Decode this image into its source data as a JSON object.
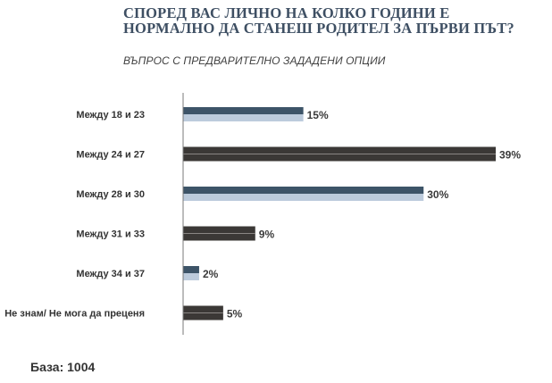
{
  "title": "СПОРЕД ВАС ЛИЧНО НА КОЛКО ГОДИНИ Е НОРМАЛНО ДА СТАНЕШ РОДИТЕЛ ЗА ПЪРВИ ПЪТ?",
  "subtitle": "ВЪПРОС С ПРЕДВАРИТЕЛНО ЗАДАДЕНИ ОПЦИИ",
  "footer": {
    "base": "База: 1004"
  },
  "colors": {
    "highlight_top": "#3d5468",
    "highlight_bottom": "#bccbdc",
    "dark": "#3b3836",
    "axis": "#7a7a7a"
  },
  "chart_data": {
    "type": "bar",
    "orientation": "horizontal",
    "categories": [
      "Между 18 и 23",
      "Между 24 и 27",
      "Между 28 и 30",
      "Между 31 и 33",
      "Между 34 и 37",
      "Не знам/ Не мога да преценя"
    ],
    "values": [
      15,
      39,
      30,
      9,
      2,
      5
    ],
    "value_labels": [
      "15%",
      "39%",
      "30%",
      "9%",
      "2%",
      "5%"
    ],
    "styles": [
      "highlight",
      "dark",
      "highlight",
      "dark",
      "highlight",
      "dark"
    ],
    "xlim": [
      0,
      45
    ],
    "grid": false,
    "legend": "none"
  }
}
